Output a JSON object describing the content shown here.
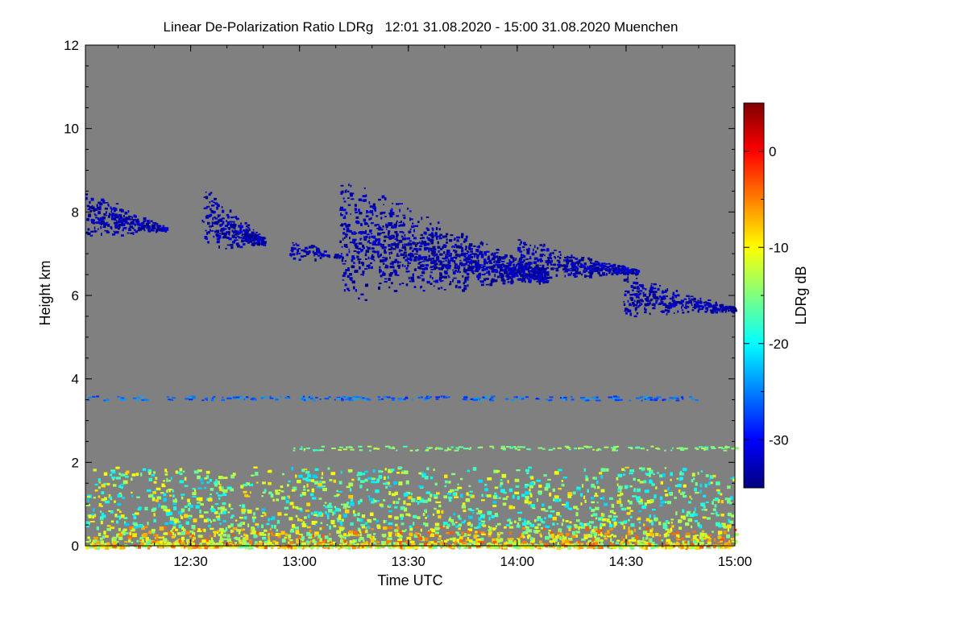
{
  "chart_data": {
    "type": "heatmap",
    "title": "Linear De-Polarization Ratio LDRg   12:01 31.08.2020 - 15:00 31.08.2020 Muenchen",
    "xlabel": "Time UTC",
    "ylabel": "Height km",
    "x_range_min": [
      721,
      900
    ],
    "x_ticks": [
      {
        "value": 750,
        "label": "12:30"
      },
      {
        "value": 780,
        "label": "13:00"
      },
      {
        "value": 810,
        "label": "13:30"
      },
      {
        "value": 840,
        "label": "14:00"
      },
      {
        "value": 870,
        "label": "14:30"
      },
      {
        "value": 900,
        "label": "15:00"
      }
    ],
    "ylim": [
      0,
      12
    ],
    "y_ticks": [
      0,
      2,
      4,
      6,
      8,
      10,
      12
    ],
    "background_color": "#808080",
    "colorbar": {
      "label": "LDRg dB",
      "range": [
        -35,
        5
      ],
      "ticks": [
        0,
        -10,
        -20,
        -30
      ],
      "colormap": "jet"
    },
    "features": [
      {
        "name": "cirrus-0",
        "t_range": [
          721,
          743
        ],
        "height_km": [
          7.3,
          8.5
        ],
        "ldr_db": -33
      },
      {
        "name": "cirrus-1",
        "t_range": [
          753,
          770
        ],
        "height_km": [
          6.9,
          8.6
        ],
        "ldr_db": -33
      },
      {
        "name": "cirrus-2",
        "t_range": [
          777,
          791
        ],
        "height_km": [
          6.8,
          7.4
        ],
        "ldr_db": -33
      },
      {
        "name": "cirrus-3",
        "t_range": [
          791,
          848
        ],
        "height_km": [
          5.7,
          8.8
        ],
        "ldr_db": -33
      },
      {
        "name": "cirrus-4",
        "t_range": [
          840,
          873
        ],
        "height_km": [
          6.3,
          7.4
        ],
        "ldr_db": -33
      },
      {
        "name": "cirrus-5",
        "t_range": [
          869,
          900
        ],
        "height_km": [
          5.4,
          6.5
        ],
        "ldr_db": -33
      },
      {
        "name": "thin-layer-3.5km",
        "t_range": [
          721,
          889
        ],
        "height_km": [
          3.5,
          3.6
        ],
        "ldr_db": -26
      },
      {
        "name": "layer-2.3km",
        "t_range": [
          778,
          900
        ],
        "height_km": [
          2.3,
          2.4
        ],
        "ldr_db": -15
      },
      {
        "name": "boundary-layer",
        "t_range": [
          721,
          900
        ],
        "height_km": [
          0.0,
          1.9
        ],
        "ldr_db": -13
      }
    ]
  }
}
